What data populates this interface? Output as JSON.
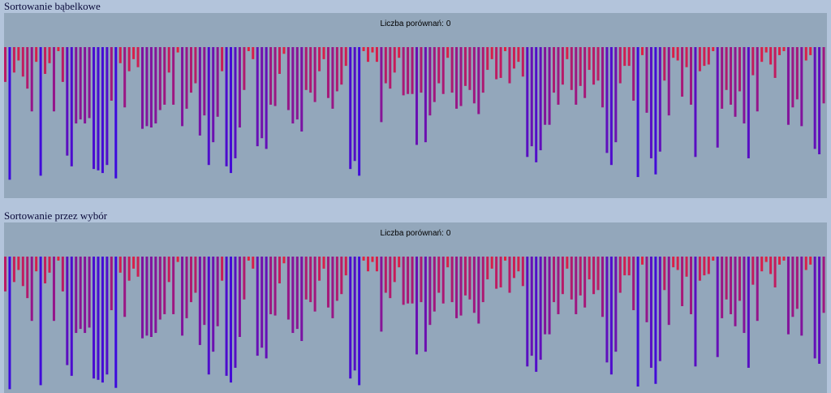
{
  "panels": [
    {
      "title": "Sortowanie bąbelkowe",
      "counter_label": "Liczba porównań:",
      "counter_value": "0"
    },
    {
      "title": "Sortowanie przez wybór",
      "counter_label": "Liczba porównań:",
      "counter_value": "0"
    }
  ],
  "colors": {
    "short_bar": "#e8203a",
    "long_bar": "#3a0ae0",
    "canvas_bg": "#93a7bb",
    "page_bg": "#b3c4db"
  },
  "chart_data": {
    "type": "bar",
    "values": [
      26,
      99,
      19,
      10,
      22,
      31,
      48,
      11,
      96,
      20,
      12,
      48,
      3,
      26,
      81,
      89,
      57,
      54,
      57,
      53,
      91,
      92,
      94,
      88,
      40,
      98,
      12,
      45,
      18,
      9,
      15,
      61,
      59,
      60,
      57,
      47,
      43,
      19,
      43,
      4,
      59,
      46,
      34,
      27,
      66,
      51,
      88,
      71,
      52,
      18,
      89,
      94,
      83,
      60,
      32,
      3,
      9,
      74,
      68,
      76,
      43,
      44,
      20,
      5,
      47,
      57,
      54,
      63,
      32,
      34,
      41,
      18,
      9,
      38,
      46,
      33,
      28,
      14,
      91,
      85,
      96,
      3,
      11,
      4,
      11,
      56,
      27,
      31,
      19,
      8,
      36,
      35,
      35,
      73,
      34,
      71,
      51,
      41,
      27,
      35,
      8,
      34,
      46,
      44,
      29,
      32,
      42,
      50,
      34,
      17,
      9,
      24,
      23,
      3,
      27,
      16,
      11,
      22,
      82,
      74,
      86,
      77,
      58,
      58,
      34,
      43,
      28,
      9,
      32,
      43,
      29,
      38,
      17,
      28,
      25,
      45,
      79,
      88,
      71,
      27,
      14,
      14,
      40,
      97,
      6,
      49,
      83,
      95,
      78,
      25,
      51,
      8,
      10,
      37,
      15,
      43,
      82,
      18,
      14,
      13,
      3,
      75,
      46,
      32,
      43,
      52,
      33,
      57,
      83,
      21,
      48,
      11,
      4,
      13,
      23,
      6,
      3,
      58,
      45,
      39,
      59,
      10,
      6,
      76,
      80,
      42
    ],
    "ylim": [
      0,
      100
    ]
  }
}
